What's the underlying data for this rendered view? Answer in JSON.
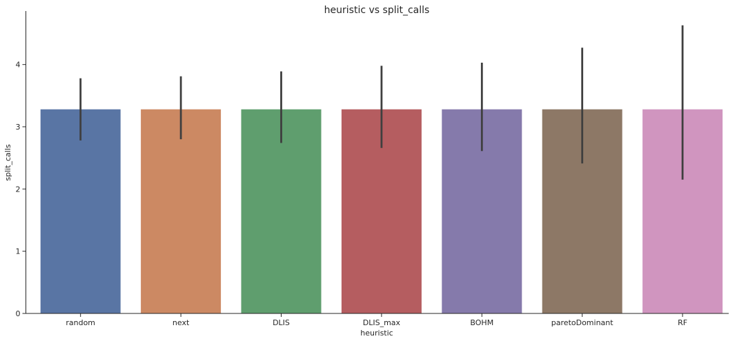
{
  "chart_data": {
    "type": "bar",
    "title": "heuristic vs split_calls",
    "xlabel": "heuristic",
    "ylabel": "split_calls",
    "categories": [
      "random",
      "next",
      "DLIS",
      "DLIS_max",
      "BOHM",
      "paretoDominant",
      "RF"
    ],
    "values": [
      3.28,
      3.28,
      3.28,
      3.28,
      3.28,
      3.28,
      3.28
    ],
    "error_low": [
      2.78,
      2.8,
      2.74,
      2.66,
      2.61,
      2.41,
      2.15
    ],
    "error_high": [
      3.78,
      3.81,
      3.89,
      3.98,
      4.03,
      4.27,
      4.63
    ],
    "colors": [
      "#5975a4",
      "#cc8963",
      "#5f9e6e",
      "#b55d60",
      "#857aab",
      "#8d7866",
      "#d095bf"
    ],
    "yticks": [
      "0",
      "1",
      "2",
      "3",
      "4"
    ],
    "ylim": [
      0,
      4.86
    ],
    "grid": false,
    "legend": "none"
  }
}
